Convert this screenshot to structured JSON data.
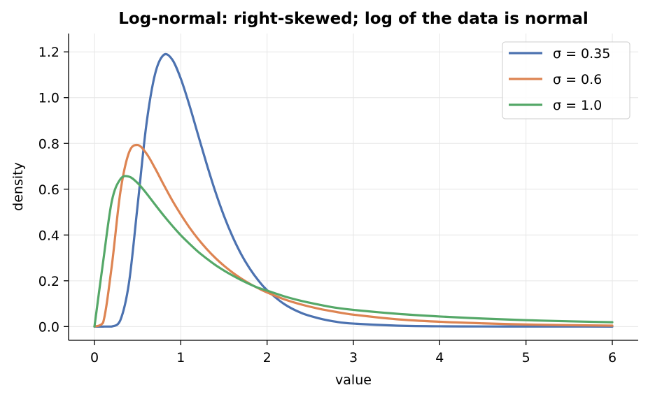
{
  "chart_data": {
    "type": "line",
    "title": "Log-normal: right-skewed; log of the data is normal",
    "xlabel": "value",
    "ylabel": "density",
    "xlim": [
      -0.3,
      6.3
    ],
    "ylim": [
      -0.06,
      1.28
    ],
    "x_ticks": [
      0,
      1,
      2,
      3,
      4,
      5,
      6
    ],
    "x_tick_labels": [
      "0",
      "1",
      "2",
      "3",
      "4",
      "5",
      "6"
    ],
    "y_ticks": [
      0.0,
      0.2,
      0.4,
      0.6,
      0.8,
      1.0,
      1.2
    ],
    "y_tick_labels": [
      "0.0",
      "0.2",
      "0.4",
      "0.6",
      "0.8",
      "1.0",
      "1.2"
    ],
    "grid": true,
    "legend_position": "top-right",
    "x": [
      0,
      0.1,
      0.2,
      0.3,
      0.4,
      0.5,
      0.6,
      0.7,
      0.8,
      0.9,
      1.0,
      1.1,
      1.2,
      1.3,
      1.4,
      1.5,
      1.6,
      1.7,
      1.8,
      1.9,
      2.0,
      2.2,
      2.4,
      2.6,
      2.8,
      3.0,
      3.5,
      4.0,
      4.5,
      5.0,
      5.5,
      6.0
    ],
    "series": [
      {
        "name": "σ = 0.35",
        "color": "#4c72b0",
        "values": [
          0,
          0,
          0.0003,
          0.028,
          0.191,
          0.53,
          0.878,
          1.1,
          1.186,
          1.167,
          1.083,
          0.967,
          0.838,
          0.71,
          0.59,
          0.484,
          0.393,
          0.316,
          0.253,
          0.201,
          0.159,
          0.098,
          0.059,
          0.036,
          0.021,
          0.013,
          0.004,
          0.0012,
          0.0004,
          0.0001,
          4e-05,
          1e-05
        ]
      },
      {
        "name": "σ = 0.6",
        "color": "#dd8452",
        "values": [
          0,
          0.017,
          0.263,
          0.587,
          0.76,
          0.793,
          0.757,
          0.693,
          0.621,
          0.552,
          0.49,
          0.433,
          0.383,
          0.339,
          0.3,
          0.266,
          0.236,
          0.21,
          0.187,
          0.167,
          0.149,
          0.119,
          0.096,
          0.078,
          0.064,
          0.052,
          0.032,
          0.021,
          0.014,
          0.009,
          0.006,
          0.004
        ]
      },
      {
        "name": "σ = 1.0",
        "color": "#55a868",
        "values": [
          0,
          0.282,
          0.546,
          0.644,
          0.655,
          0.627,
          0.583,
          0.534,
          0.486,
          0.441,
          0.399,
          0.362,
          0.327,
          0.297,
          0.269,
          0.245,
          0.223,
          0.203,
          0.185,
          0.169,
          0.157,
          0.132,
          0.112,
          0.096,
          0.082,
          0.073,
          0.056,
          0.044,
          0.035,
          0.028,
          0.023,
          0.019
        ]
      }
    ]
  }
}
